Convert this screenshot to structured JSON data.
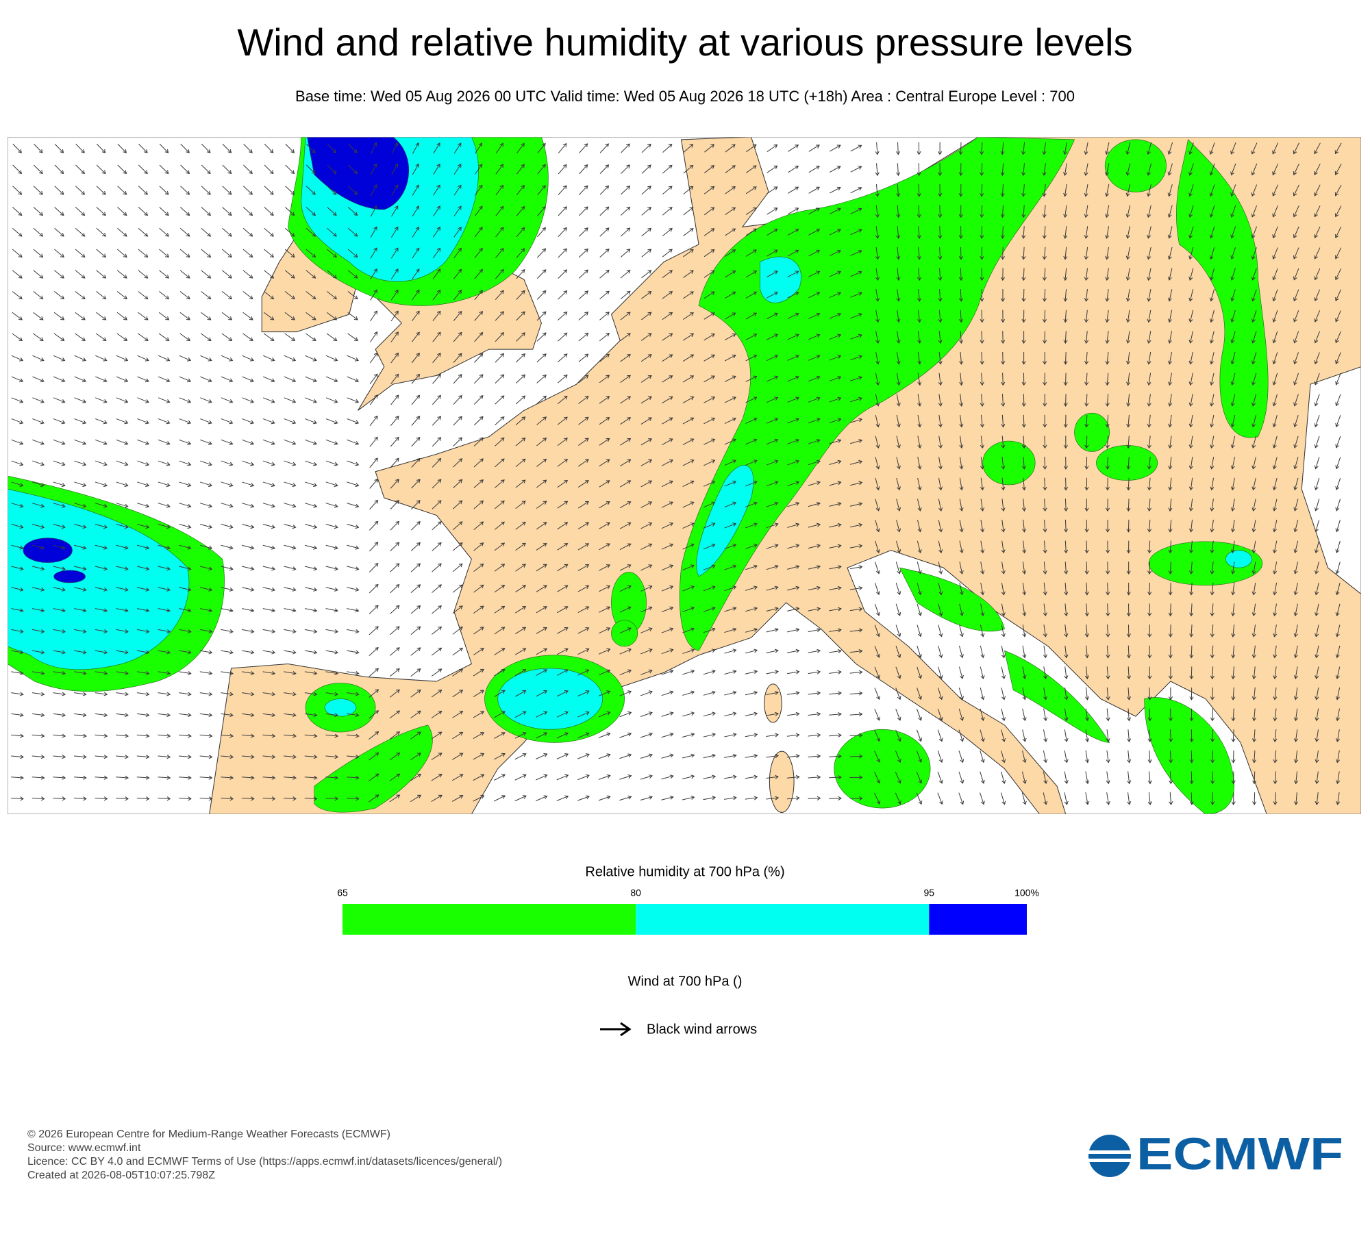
{
  "header": {
    "title": "Wind and relative humidity at various pressure levels",
    "subtitle": "Base time: Wed 05 Aug 2026 00 UTC Valid time: Wed 05 Aug 2026 18 UTC (+18h) Area : Central Europe Level : 700"
  },
  "colorbar": {
    "title": "Relative humidity at 700 hPa (%)",
    "ticks": [
      65,
      80,
      95,
      {
        "value": 100,
        "label": "100%"
      }
    ],
    "colors": [
      "#1aff00",
      "#00fff0",
      "#0000ff"
    ]
  },
  "wind_legend": {
    "title": "Wind at 700 hPa ()",
    "label": "Black wind arrows"
  },
  "footer": {
    "lines": [
      "© 2026 European Centre for Medium-Range Weather Forecasts (ECMWF)",
      "Source: www.ecmwf.int",
      "Licence: CC BY 4.0 and ECMWF Terms of Use (https://apps.ecmwf.int/datasets/licences/general/)",
      "Created at 2026-08-05T10:07:25.798Z"
    ]
  },
  "logo": {
    "text": "ECMWF"
  }
}
